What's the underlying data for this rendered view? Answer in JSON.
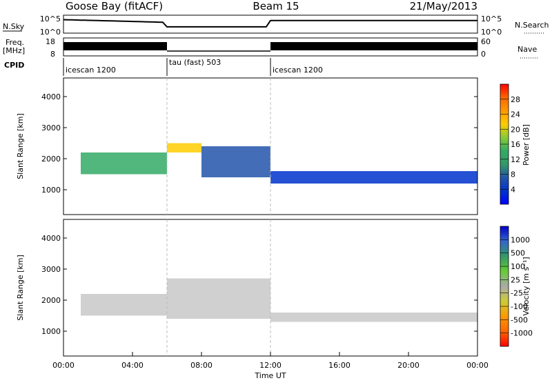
{
  "header": {
    "station": "Goose Bay (fitACF)",
    "beam": "Beam 15",
    "date": "21/May/2013"
  },
  "panels": {
    "nsky_label": "N.Sky",
    "nsky_ticks": [
      "10^5",
      "10^0"
    ],
    "nsearch_label": "N.Search",
    "nsearch_ticks": [
      "10^5",
      "10^0"
    ],
    "freq_label_1": "Freq.",
    "freq_label_2": "[MHz]",
    "freq_ticks": [
      "18",
      "8"
    ],
    "nave_label": "Nave",
    "nave_ticks": [
      "60",
      "0"
    ],
    "cpid_label": "CPID",
    "cpid_segments": [
      {
        "label": "icescan 1200",
        "start_h": 0,
        "end_h": 6
      },
      {
        "label": "tau (fast) 503",
        "start_h": 6,
        "end_h": 12
      },
      {
        "label": "icescan 1200",
        "start_h": 12,
        "end_h": 24
      }
    ]
  },
  "chart_data": [
    {
      "type": "heatmap",
      "title": "",
      "quantity": "Power",
      "ylabel": "Slant Range [km]",
      "xlabel": "",
      "xlim": [
        0,
        24
      ],
      "ylim": [
        200,
        4600
      ],
      "yticks": [
        1000,
        2000,
        3000,
        4000
      ],
      "colorbar_label": "Power [dB]",
      "colorbar_ticks": [
        "28",
        "24",
        "20",
        "16",
        "12",
        "8",
        "4"
      ],
      "colorbar_colors": [
        "#ff0000",
        "#ff6600",
        "#ff9900",
        "#ffcc00",
        "#88cc33",
        "#33aa66",
        "#339966",
        "#2255aa",
        "#0033cc",
        "#0000ff"
      ],
      "echo_bands": [
        {
          "h_start": 1.0,
          "h_end": 6.0,
          "r_start": 1500,
          "r_end": 2200,
          "power_db": 14
        },
        {
          "h_start": 6.0,
          "h_end": 8.0,
          "r_start": 2200,
          "r_end": 2500,
          "power_db": 20
        },
        {
          "h_start": 8.0,
          "h_end": 12.0,
          "r_start": 1400,
          "r_end": 2400,
          "power_db": 10
        },
        {
          "h_start": 12.0,
          "h_end": 24.0,
          "r_start": 1200,
          "r_end": 1600,
          "power_db": 8
        }
      ]
    },
    {
      "type": "heatmap",
      "title": "",
      "quantity": "Velocity",
      "ylabel": "Slant Range [km]",
      "xlabel": "Time UT",
      "xlim": [
        0,
        24
      ],
      "ylim": [
        200,
        4600
      ],
      "yticks": [
        1000,
        2000,
        3000,
        4000
      ],
      "xticks": [
        "00:00",
        "04:00",
        "08:00",
        "12:00",
        "16:00",
        "20:00",
        "00:00"
      ],
      "colorbar_label": "Velocity [m s⁻¹]",
      "colorbar_ticks": [
        "1000",
        "500",
        "100",
        "25",
        "-25",
        "-100",
        "-500",
        "-1000"
      ],
      "colorbar_colors": [
        "#0000cc",
        "#3366cc",
        "#339966",
        "#66cc33",
        "#aaaaaa",
        "#cccc33",
        "#ff9900",
        "#ff6600",
        "#ff0000"
      ],
      "echo_bands": [
        {
          "h_start": 1.0,
          "h_end": 6.0,
          "r_start": 1500,
          "r_end": 2200,
          "velocity": 0
        },
        {
          "h_start": 6.0,
          "h_end": 12.0,
          "r_start": 1400,
          "r_end": 2700,
          "velocity": 0
        },
        {
          "h_start": 12.0,
          "h_end": 24.0,
          "r_start": 1300,
          "r_end": 1600,
          "velocity": 0
        }
      ]
    }
  ]
}
